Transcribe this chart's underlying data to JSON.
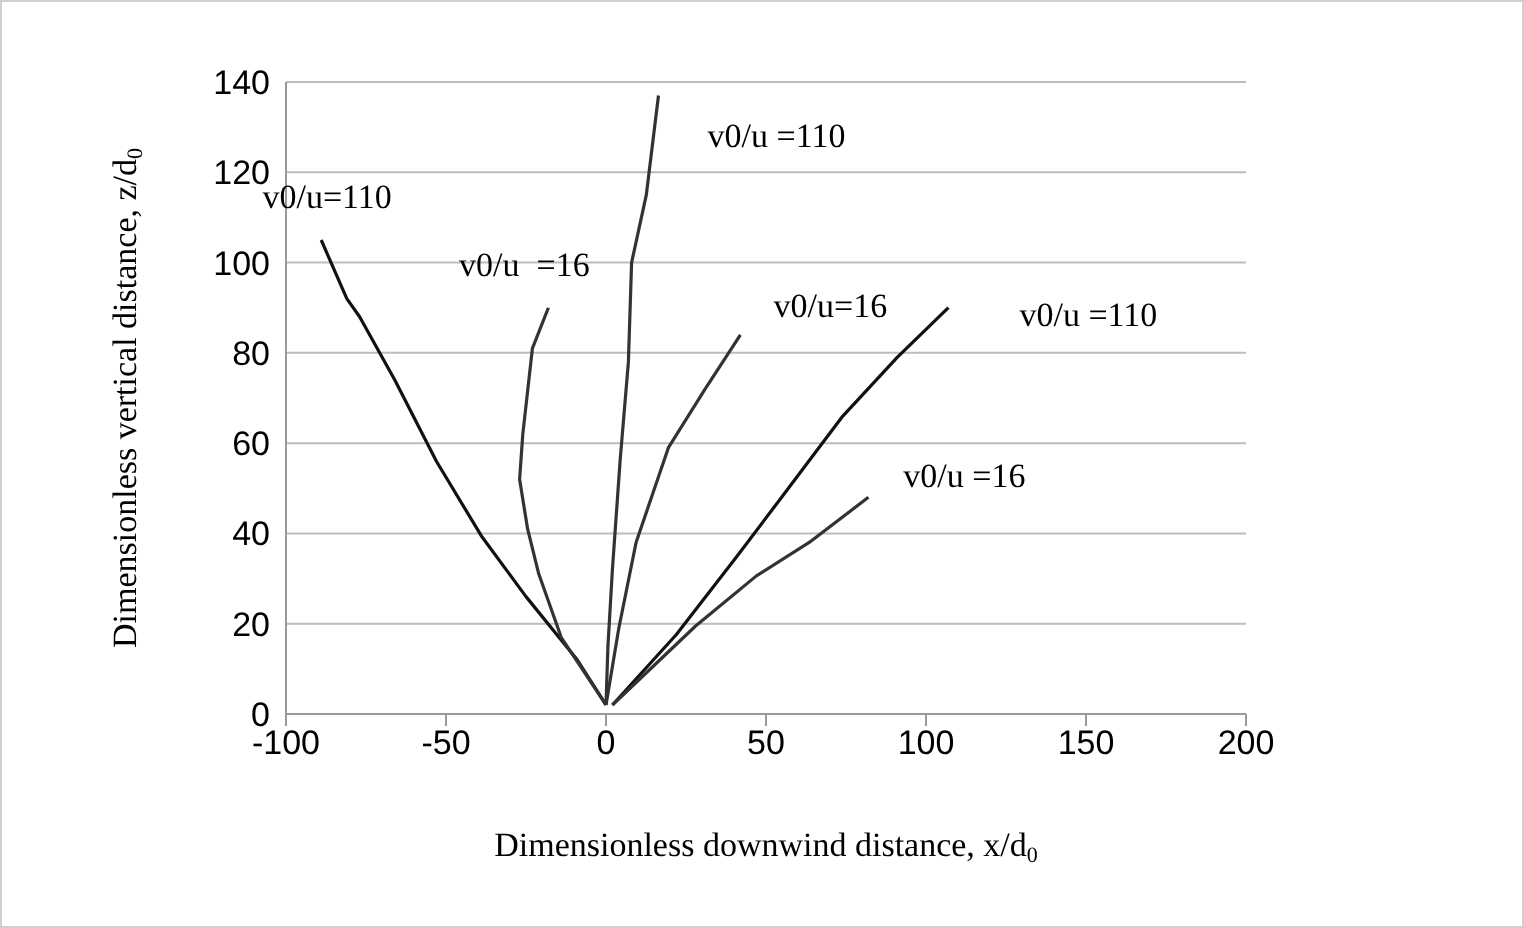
{
  "chart_data": {
    "type": "line",
    "xlabel": "Dimensionless downwind distance, x/d$_{0}$",
    "ylabel": "Dimensionless vertical distance, z/d$_{0}$",
    "xlim": [
      -100,
      200
    ],
    "xticks": [
      -100,
      -50,
      0,
      50,
      100,
      150,
      200
    ],
    "ylim": [
      0,
      140
    ],
    "yticks": [
      0,
      20,
      40,
      60,
      80,
      100,
      120,
      140
    ],
    "grid": "y",
    "marker": "none",
    "line_style": "solid",
    "series": [
      {
        "name": "v0/u=110",
        "color": "#111111",
        "x": [
          0,
          -9,
          -25,
          -39,
          -53,
          -66,
          -77,
          -81,
          -89
        ],
        "values": [
          2,
          12,
          26,
          39.5,
          56,
          74,
          88,
          92,
          105
        ]
      },
      {
        "name": "v0/u  =16",
        "color": "#333333",
        "x": [
          0,
          -14,
          -21,
          -24.5,
          -27,
          -26,
          -23,
          -18
        ],
        "values": [
          2,
          17,
          31,
          41,
          52,
          62,
          81,
          90
        ]
      },
      {
        "name": "v0/u =110",
        "color": "#333333",
        "x": [
          0,
          0.6,
          2,
          4.4,
          7,
          8,
          12.6,
          16.4
        ],
        "values": [
          2,
          15,
          32,
          56,
          78,
          100,
          115,
          137
        ]
      },
      {
        "name": "v0/u=16",
        "color": "#333333",
        "x": [
          0,
          4,
          9.4,
          19.5,
          31,
          42
        ],
        "values": [
          2,
          19,
          38,
          59,
          72,
          84
        ]
      },
      {
        "name": "v0/u =110",
        "color": "#111111",
        "x": [
          2,
          22,
          41,
          57,
          74,
          91,
          107
        ],
        "values": [
          2,
          17.6,
          35,
          50,
          66,
          79,
          90
        ]
      },
      {
        "name": "v0/u =16",
        "color": "#333333",
        "x": [
          2,
          28,
          47,
          63.5,
          82
        ],
        "values": [
          2,
          19.5,
          30.6,
          38,
          48
        ]
      }
    ]
  }
}
